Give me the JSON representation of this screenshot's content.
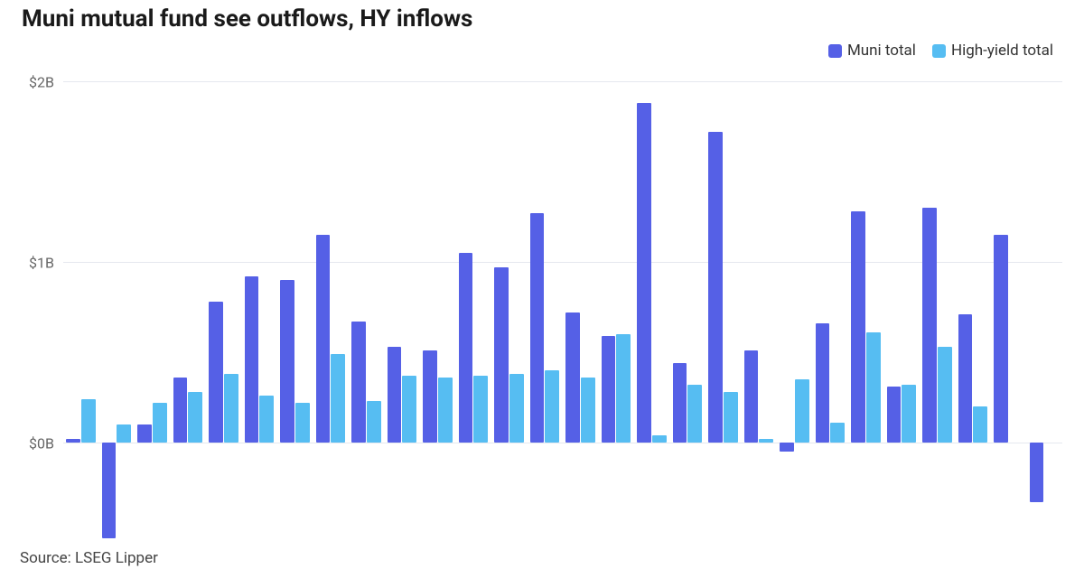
{
  "title": "Muni mutual fund see outflows, HY inflows",
  "source": "Source: LSEG Lipper",
  "legend": {
    "series_a": {
      "label": "Muni total",
      "color": "#5560e6"
    },
    "series_b": {
      "label": "High-yield total",
      "color": "#56bdf2"
    }
  },
  "chart": {
    "type": "grouped-bar",
    "background_color": "#ffffff",
    "grid_color": "#e5e8ef",
    "axis_font_color": "#666666",
    "axis_font_size": 16,
    "y": {
      "min": -0.55,
      "max": 2.0,
      "ticks": [
        {
          "value": 0,
          "label": "$0B"
        },
        {
          "value": 1,
          "label": "$1B"
        },
        {
          "value": 2,
          "label": "$2B"
        }
      ]
    },
    "series_a_color": "#5560e6",
    "series_b_color": "#56bdf2",
    "series_a_values": [
      0.02,
      -0.53,
      0.1,
      0.36,
      0.78,
      0.92,
      0.9,
      1.15,
      0.67,
      0.53,
      0.51,
      1.05,
      0.97,
      1.27,
      0.72,
      0.59,
      1.88,
      0.44,
      1.72,
      0.51,
      -0.05,
      0.66,
      1.28,
      0.31,
      1.3,
      0.71,
      1.15,
      -0.33
    ],
    "series_b_values": [
      0.24,
      0.1,
      0.22,
      0.28,
      0.38,
      0.26,
      0.22,
      0.49,
      0.23,
      0.37,
      0.36,
      0.37,
      0.38,
      0.4,
      0.36,
      0.6,
      0.04,
      0.32,
      0.28,
      0.02,
      0.35,
      0.11,
      0.61,
      0.32,
      0.53,
      0.2,
      null,
      null
    ],
    "bar_group_count": 28
  }
}
